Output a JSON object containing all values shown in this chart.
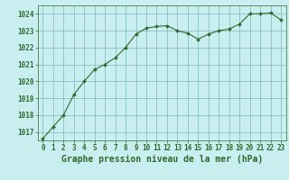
{
  "x": [
    0,
    1,
    2,
    3,
    4,
    5,
    6,
    7,
    8,
    9,
    10,
    11,
    12,
    13,
    14,
    15,
    16,
    17,
    18,
    19,
    20,
    21,
    22,
    23
  ],
  "y": [
    1016.6,
    1017.3,
    1018.0,
    1019.2,
    1020.0,
    1020.7,
    1021.0,
    1021.4,
    1022.0,
    1022.8,
    1023.15,
    1023.25,
    1023.3,
    1023.0,
    1022.85,
    1022.5,
    1022.8,
    1023.0,
    1023.1,
    1023.4,
    1024.0,
    1024.0,
    1024.05,
    1023.65
  ],
  "line_color": "#2d6a2d",
  "marker_color": "#2d6a2d",
  "bg_color": "#c8eef0",
  "grid_color": "#7bb8b8",
  "text_color": "#2d6a2d",
  "xlabel": "Graphe pression niveau de la mer (hPa)",
  "ylim_min": 1016.5,
  "ylim_max": 1024.5,
  "yticks": [
    1017,
    1018,
    1019,
    1020,
    1021,
    1022,
    1023,
    1024
  ],
  "xticks": [
    0,
    1,
    2,
    3,
    4,
    5,
    6,
    7,
    8,
    9,
    10,
    11,
    12,
    13,
    14,
    15,
    16,
    17,
    18,
    19,
    20,
    21,
    22,
    23
  ],
  "tick_fontsize": 5.5,
  "label_fontsize": 7
}
